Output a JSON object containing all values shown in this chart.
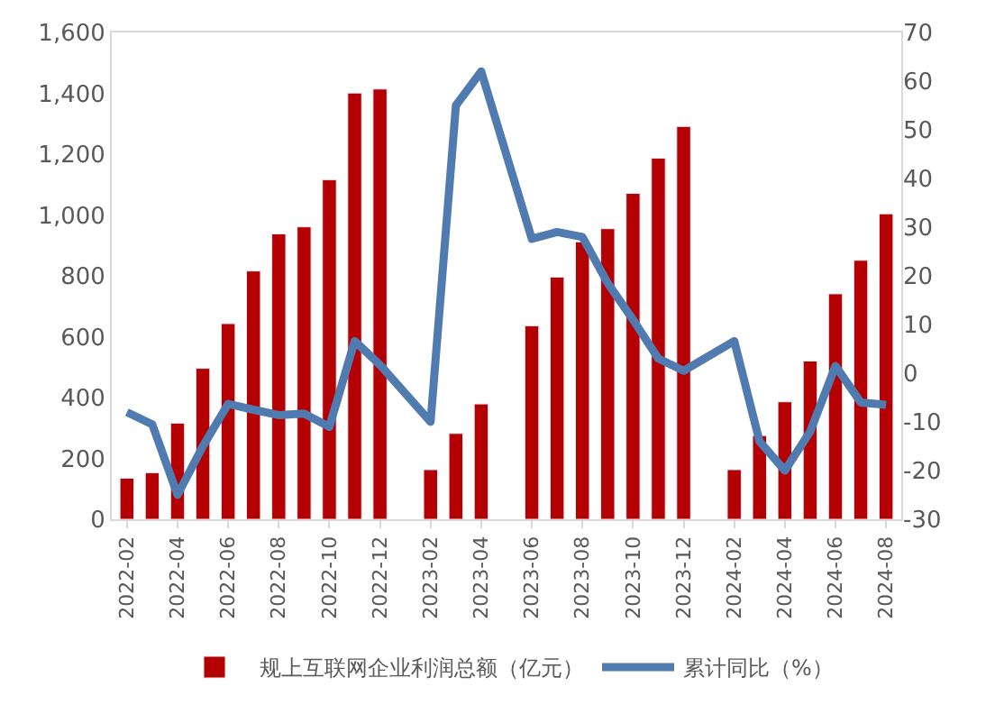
{
  "chart_data": {
    "type": "bar",
    "categories": [
      "2022-02",
      null,
      "2022-04",
      null,
      "2022-06",
      null,
      "2022-08",
      null,
      "2022-10",
      null,
      "2022-12",
      null,
      "2023-02",
      null,
      "2023-04",
      null,
      "2023-06",
      null,
      "2023-08",
      null,
      "2023-10",
      null,
      "2023-12",
      null,
      "2024-02",
      null,
      "2024-04",
      null,
      "2024-06",
      null,
      "2024-08"
    ],
    "series": [
      {
        "name": "规上互联网企业利润总额（亿元）",
        "color": "#b40000",
        "values": [
          135,
          153,
          316,
          496,
          643,
          816,
          938,
          961,
          1116,
          1401,
          1414,
          null,
          163,
          282,
          379,
          null,
          636,
          796,
          912,
          955,
          1071,
          1187,
          1291,
          null,
          163,
          275,
          386,
          520,
          741,
          851,
          1004
        ]
      },
      {
        "name": "累计同比（%）",
        "type": "line",
        "axis": "y2",
        "color": "#4f7bb1",
        "values": [
          -8,
          -10.5,
          -25,
          -15,
          -6.3,
          -7.5,
          -8.6,
          -8.3,
          -11,
          6.6,
          1.7,
          null,
          -10,
          55,
          62,
          null,
          27.6,
          29,
          28,
          18.5,
          11,
          3,
          0.5,
          null,
          6.6,
          -14,
          -20,
          -12,
          1.5,
          -6,
          -6.5
        ]
      }
    ],
    "ylim": [
      0,
      1600
    ],
    "yticks": [
      {
        "value": 0,
        "label": "0"
      },
      {
        "value": 200,
        "label": "200"
      },
      {
        "value": 400,
        "label": "400"
      },
      {
        "value": 600,
        "label": "600"
      },
      {
        "value": 800,
        "label": "800"
      },
      {
        "value": 1000,
        "label": "1,000"
      },
      {
        "value": 1200,
        "label": "1,200"
      },
      {
        "value": 1400,
        "label": "1,400"
      },
      {
        "value": 1600,
        "label": "1,600"
      }
    ],
    "y2lim": [
      -30,
      70
    ],
    "y2ticks": [
      -30,
      -20,
      -10,
      0,
      10,
      20,
      30,
      40,
      50,
      60,
      70
    ],
    "legend": "bottom",
    "marker": "none",
    "line_style": "solid"
  }
}
